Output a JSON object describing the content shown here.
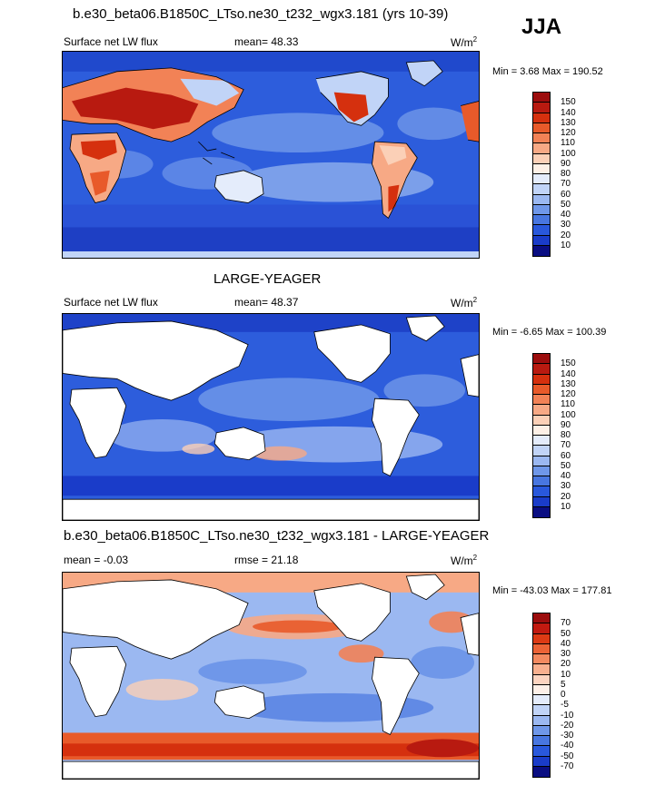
{
  "season": "JJA",
  "panels": [
    {
      "title": "b.e30_beta06.B1850C_LTso.ne30_t232_wgx3.181 (yrs 10-39)",
      "variable": "Surface net LW flux",
      "stat1": "mean=  48.33",
      "stat2": "",
      "units": "W/m",
      "units_exp": "2",
      "minmax": "Min =   3.68 Max = 190.52",
      "colorbar": {
        "levels": [
          "150",
          "140",
          "130",
          "120",
          "110",
          "100",
          "90",
          "80",
          "70",
          "60",
          "50",
          "40",
          "30",
          "20",
          "10"
        ],
        "colors": [
          "#9c0d0d",
          "#b81a10",
          "#d5300e",
          "#e85a2a",
          "#f28256",
          "#f7a985",
          "#fbd0b7",
          "#fdf0e6",
          "#e4ecfb",
          "#c1d4f7",
          "#9bb8f1",
          "#6f97e9",
          "#4876e0",
          "#2958dc",
          "#1a3cc9",
          "#0a0e82"
        ]
      }
    },
    {
      "title": "LARGE-YEAGER",
      "variable": "Surface net LW flux",
      "stat1": "mean=  48.37",
      "stat2": "",
      "units": "W/m",
      "units_exp": "2",
      "minmax": "Min =  -6.65 Max = 100.39",
      "colorbar": {
        "levels": [
          "150",
          "140",
          "130",
          "120",
          "110",
          "100",
          "90",
          "80",
          "70",
          "60",
          "50",
          "40",
          "30",
          "20",
          "10"
        ],
        "colors": [
          "#9c0d0d",
          "#b81a10",
          "#d5300e",
          "#e85a2a",
          "#f28256",
          "#f7a985",
          "#fbd0b7",
          "#fdf0e6",
          "#e4ecfb",
          "#c1d4f7",
          "#9bb8f1",
          "#6f97e9",
          "#4876e0",
          "#2958dc",
          "#1a3cc9",
          "#0a0e82"
        ]
      }
    },
    {
      "title": "b.e30_beta06.B1850C_LTso.ne30_t232_wgx3.181 - LARGE-YEAGER",
      "variable": "",
      "stat1": "mean =  -0.03",
      "stat2": "rmse =  21.18",
      "units": "W/m",
      "units_exp": "2",
      "minmax": "Min = -43.03 Max = 177.81",
      "colorbar": {
        "levels": [
          "70",
          "50",
          "40",
          "30",
          "20",
          "10",
          "5",
          "0",
          "-5",
          "-10",
          "-20",
          "-30",
          "-40",
          "-50",
          "-70"
        ],
        "colors": [
          "#9c0d0d",
          "#c21a10",
          "#dd3a14",
          "#ec6336",
          "#f38a60",
          "#f8b08f",
          "#fcd4c0",
          "#fdf0e8",
          "#e4ecfb",
          "#c1d4f7",
          "#9bb8f1",
          "#6f97e9",
          "#4876e0",
          "#2958dc",
          "#1a3cc9",
          "#0a0e82"
        ]
      }
    }
  ]
}
